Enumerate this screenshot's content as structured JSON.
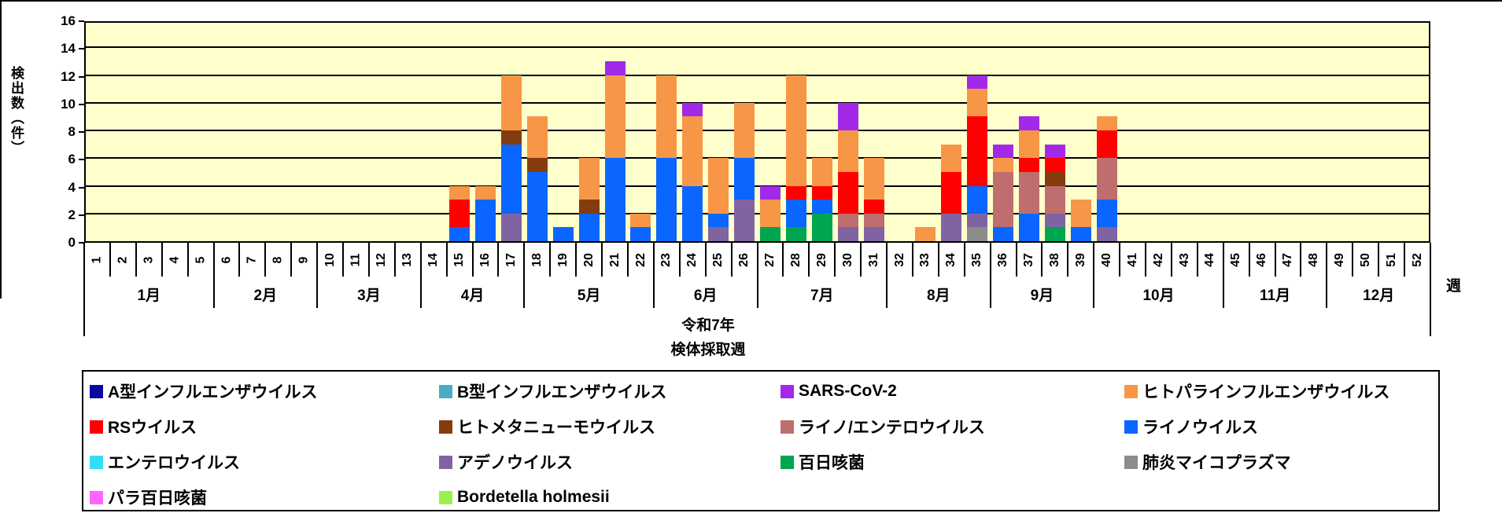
{
  "chart_data": {
    "type": "bar",
    "subtype": "stacked-vertical",
    "plot_background": "#FFFFCC",
    "y_axis": {
      "title": "検出数（件）",
      "min": 0,
      "max": 16,
      "tick_step": 2
    },
    "x_axis": {
      "weeks_total": 52,
      "unit_label": "週",
      "year_label": "令和7年",
      "title": "検体採取週"
    },
    "months": [
      {
        "label": "1月",
        "weeks": 5
      },
      {
        "label": "2月",
        "weeks": 4
      },
      {
        "label": "3月",
        "weeks": 4
      },
      {
        "label": "4月",
        "weeks": 4
      },
      {
        "label": "5月",
        "weeks": 5
      },
      {
        "label": "6月",
        "weeks": 4
      },
      {
        "label": "7月",
        "weeks": 5
      },
      {
        "label": "8月",
        "weeks": 4
      },
      {
        "label": "9月",
        "weeks": 4
      },
      {
        "label": "10月",
        "weeks": 5
      },
      {
        "label": "11月",
        "weeks": 4
      },
      {
        "label": "12月",
        "weeks": 4
      }
    ],
    "series": [
      {
        "name": "A型インフルエンザウイルス",
        "color": "#0A0AA0"
      },
      {
        "name": "B型インフルエンザウイルス",
        "color": "#4BACC6"
      },
      {
        "name": "SARS-CoV-2",
        "color": "#A229E8"
      },
      {
        "name": "ヒトパラインフルエンザウイルス",
        "color": "#F79646"
      },
      {
        "name": "RSウイルス",
        "color": "#FF0000"
      },
      {
        "name": "ヒトメタニューモウイルス",
        "color": "#843C0C"
      },
      {
        "name": "ライノ/エンテロウイルス",
        "color": "#BE6E6E"
      },
      {
        "name": "ライノウイルス",
        "color": "#0A66FF"
      },
      {
        "name": "エンテロウイルス",
        "color": "#33DFF2"
      },
      {
        "name": "アデノウイルス",
        "color": "#8064A2"
      },
      {
        "name": "百日咳菌",
        "color": "#00A550"
      },
      {
        "name": "肺炎マイコプラズマ",
        "color": "#8C8C8C"
      },
      {
        "name": "パラ百日咳菌",
        "color": "#FF66FF"
      },
      {
        "name": "Bordetella holmesii",
        "color": "#9AF24F"
      }
    ],
    "bars": [
      {
        "week": 15,
        "segments": [
          [
            "ライノウイルス",
            1
          ],
          [
            "RSウイルス",
            2
          ],
          [
            "ヒトパラインフルエンザウイルス",
            1
          ]
        ]
      },
      {
        "week": 16,
        "segments": [
          [
            "ライノウイルス",
            3
          ],
          [
            "ヒトパラインフルエンザウイルス",
            1
          ]
        ]
      },
      {
        "week": 17,
        "segments": [
          [
            "アデノウイルス",
            2
          ],
          [
            "ライノウイルス",
            5
          ],
          [
            "ヒトメタニューモウイルス",
            1
          ],
          [
            "ヒトパラインフルエンザウイルス",
            4
          ]
        ]
      },
      {
        "week": 18,
        "segments": [
          [
            "ライノウイルス",
            5
          ],
          [
            "ヒトメタニューモウイルス",
            1
          ],
          [
            "ヒトパラインフルエンザウイルス",
            3
          ]
        ]
      },
      {
        "week": 19,
        "segments": [
          [
            "ライノウイルス",
            1
          ]
        ]
      },
      {
        "week": 20,
        "segments": [
          [
            "ライノウイルス",
            2
          ],
          [
            "ヒトメタニューモウイルス",
            1
          ],
          [
            "ヒトパラインフルエンザウイルス",
            3
          ]
        ]
      },
      {
        "week": 21,
        "segments": [
          [
            "ライノウイルス",
            6
          ],
          [
            "ヒトパラインフルエンザウイルス",
            6
          ],
          [
            "SARS-CoV-2",
            1
          ]
        ]
      },
      {
        "week": 22,
        "segments": [
          [
            "ライノウイルス",
            1
          ],
          [
            "ヒトパラインフルエンザウイルス",
            1
          ]
        ]
      },
      {
        "week": 23,
        "segments": [
          [
            "ライノウイルス",
            6
          ],
          [
            "ヒトパラインフルエンザウイルス",
            6
          ]
        ]
      },
      {
        "week": 24,
        "segments": [
          [
            "ライノウイルス",
            4
          ],
          [
            "ヒトパラインフルエンザウイルス",
            5
          ],
          [
            "SARS-CoV-2",
            1
          ]
        ]
      },
      {
        "week": 25,
        "segments": [
          [
            "アデノウイルス",
            1
          ],
          [
            "ライノウイルス",
            1
          ],
          [
            "ヒトパラインフルエンザウイルス",
            4
          ]
        ]
      },
      {
        "week": 26,
        "segments": [
          [
            "アデノウイルス",
            3
          ],
          [
            "ライノウイルス",
            3
          ],
          [
            "ヒトパラインフルエンザウイルス",
            4
          ]
        ]
      },
      {
        "week": 27,
        "segments": [
          [
            "百日咳菌",
            1
          ],
          [
            "ヒトパラインフルエンザウイルス",
            2
          ],
          [
            "SARS-CoV-2",
            1
          ]
        ]
      },
      {
        "week": 28,
        "segments": [
          [
            "百日咳菌",
            1
          ],
          [
            "ライノウイルス",
            2
          ],
          [
            "RSウイルス",
            1
          ],
          [
            "ヒトパラインフルエンザウイルス",
            8
          ]
        ]
      },
      {
        "week": 29,
        "segments": [
          [
            "百日咳菌",
            2
          ],
          [
            "ライノウイルス",
            1
          ],
          [
            "RSウイルス",
            1
          ],
          [
            "ヒトパラインフルエンザウイルス",
            2
          ]
        ]
      },
      {
        "week": 30,
        "segments": [
          [
            "アデノウイルス",
            1
          ],
          [
            "ライノ/エンテロウイルス",
            1
          ],
          [
            "RSウイルス",
            3
          ],
          [
            "ヒトパラインフルエンザウイルス",
            3
          ],
          [
            "SARS-CoV-2",
            2
          ]
        ]
      },
      {
        "week": 31,
        "segments": [
          [
            "アデノウイルス",
            1
          ],
          [
            "ライノ/エンテロウイルス",
            1
          ],
          [
            "RSウイルス",
            1
          ],
          [
            "ヒトパラインフルエンザウイルス",
            3
          ]
        ]
      },
      {
        "week": 33,
        "segments": [
          [
            "ヒトパラインフルエンザウイルス",
            1
          ]
        ]
      },
      {
        "week": 34,
        "segments": [
          [
            "アデノウイルス",
            2
          ],
          [
            "RSウイルス",
            3
          ],
          [
            "ヒトパラインフルエンザウイルス",
            2
          ]
        ]
      },
      {
        "week": 35,
        "segments": [
          [
            "肺炎マイコプラズマ",
            1
          ],
          [
            "アデノウイルス",
            1
          ],
          [
            "ライノウイルス",
            2
          ],
          [
            "RSウイルス",
            5
          ],
          [
            "ヒトパラインフルエンザウイルス",
            2
          ],
          [
            "SARS-CoV-2",
            1
          ]
        ]
      },
      {
        "week": 36,
        "segments": [
          [
            "ライノウイルス",
            1
          ],
          [
            "ライノ/エンテロウイルス",
            4
          ],
          [
            "ヒトパラインフルエンザウイルス",
            1
          ],
          [
            "SARS-CoV-2",
            1
          ]
        ]
      },
      {
        "week": 37,
        "segments": [
          [
            "ライノウイルス",
            2
          ],
          [
            "ライノ/エンテロウイルス",
            3
          ],
          [
            "RSウイルス",
            1
          ],
          [
            "ヒトパラインフルエンザウイルス",
            2
          ],
          [
            "SARS-CoV-2",
            1
          ]
        ]
      },
      {
        "week": 38,
        "segments": [
          [
            "百日咳菌",
            1
          ],
          [
            "アデノウイルス",
            1
          ],
          [
            "ライノ/エンテロウイルス",
            2
          ],
          [
            "ヒトメタニューモウイルス",
            1
          ],
          [
            "RSウイルス",
            1
          ],
          [
            "SARS-CoV-2",
            1
          ]
        ]
      },
      {
        "week": 39,
        "segments": [
          [
            "ライノウイルス",
            1
          ],
          [
            "ヒトパラインフルエンザウイルス",
            2
          ]
        ]
      },
      {
        "week": 40,
        "segments": [
          [
            "アデノウイルス",
            1
          ],
          [
            "ライノウイルス",
            2
          ],
          [
            "ライノ/エンテロウイルス",
            3
          ],
          [
            "RSウイルス",
            2
          ],
          [
            "ヒトパラインフルエンザウイルス",
            1
          ]
        ]
      }
    ],
    "legend_layout": {
      "columns": 4,
      "order": "row-major"
    }
  }
}
